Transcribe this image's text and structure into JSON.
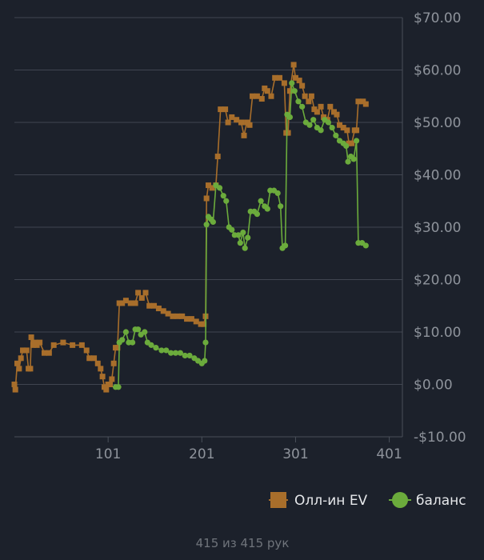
{
  "chart_data": {
    "type": "line",
    "title": "",
    "xlabel": "",
    "ylabel": "",
    "xlim": [
      1,
      415
    ],
    "ylim": [
      -10,
      70
    ],
    "x_ticks": [
      101,
      201,
      301,
      401
    ],
    "x_tick_labels": [
      "101",
      "201",
      "301",
      "401"
    ],
    "y_ticks": [
      -10,
      0,
      10,
      20,
      30,
      40,
      50,
      60,
      70
    ],
    "y_tick_labels": [
      "-$10.00",
      "$0.00",
      "$10.00",
      "$20.00",
      "$30.00",
      "$40.00",
      "$50.00",
      "$60.00",
      "$70.00"
    ],
    "grid": true,
    "legend_position": "bottom-right",
    "series": [
      {
        "name": "Олл-ин EV",
        "color": "#a86e2b",
        "marker": "square",
        "points": [
          [
            1,
            0
          ],
          [
            2,
            -1
          ],
          [
            4,
            4
          ],
          [
            6,
            3
          ],
          [
            8,
            5
          ],
          [
            10,
            6.5
          ],
          [
            14,
            6.5
          ],
          [
            16,
            3
          ],
          [
            18,
            3
          ],
          [
            19,
            9
          ],
          [
            21,
            7.5
          ],
          [
            23,
            8
          ],
          [
            25,
            7.5
          ],
          [
            28,
            8
          ],
          [
            33,
            6
          ],
          [
            38,
            6
          ],
          [
            43,
            7.5
          ],
          [
            53,
            8
          ],
          [
            63,
            7.5
          ],
          [
            73,
            7.5
          ],
          [
            78,
            6.5
          ],
          [
            81,
            5
          ],
          [
            86,
            5
          ],
          [
            90,
            4
          ],
          [
            93,
            3
          ],
          [
            95,
            1.5
          ],
          [
            97,
            -0.5
          ],
          [
            99,
            -1
          ],
          [
            101,
            0
          ],
          [
            103,
            0
          ],
          [
            105,
            1
          ],
          [
            107,
            4
          ],
          [
            109,
            7
          ],
          [
            111,
            7
          ],
          [
            113,
            15.5
          ],
          [
            116,
            15.5
          ],
          [
            120,
            16
          ],
          [
            125,
            15.5
          ],
          [
            130,
            15.5
          ],
          [
            133,
            17.5
          ],
          [
            137,
            16.5
          ],
          [
            141,
            17.5
          ],
          [
            145,
            15
          ],
          [
            150,
            15
          ],
          [
            155,
            14.5
          ],
          [
            160,
            14
          ],
          [
            165,
            13.5
          ],
          [
            170,
            13
          ],
          [
            175,
            13
          ],
          [
            180,
            13
          ],
          [
            185,
            12.5
          ],
          [
            190,
            12.5
          ],
          [
            195,
            12
          ],
          [
            200,
            11.5
          ],
          [
            203,
            11.5
          ],
          [
            205,
            13
          ],
          [
            206,
            35.5
          ],
          [
            208,
            38
          ],
          [
            212,
            37.5
          ],
          [
            216,
            38
          ],
          [
            218,
            43.5
          ],
          [
            221,
            52.5
          ],
          [
            226,
            52.5
          ],
          [
            229,
            50
          ],
          [
            233,
            51
          ],
          [
            238,
            50.5
          ],
          [
            243,
            50
          ],
          [
            246,
            47.5
          ],
          [
            249,
            50
          ],
          [
            252,
            49.5
          ],
          [
            255,
            55
          ],
          [
            260,
            55
          ],
          [
            265,
            54.5
          ],
          [
            268,
            56.5
          ],
          [
            271,
            56
          ],
          [
            275,
            55
          ],
          [
            279,
            58.5
          ],
          [
            284,
            58.5
          ],
          [
            289,
            57.5
          ],
          [
            291,
            48
          ],
          [
            293,
            48
          ],
          [
            295,
            56
          ],
          [
            299,
            61
          ],
          [
            301,
            58.5
          ],
          [
            305,
            58
          ],
          [
            308,
            57
          ],
          [
            311,
            55
          ],
          [
            315,
            54
          ],
          [
            318,
            55
          ],
          [
            321,
            52.5
          ],
          [
            324,
            52
          ],
          [
            328,
            53
          ],
          [
            331,
            51
          ],
          [
            335,
            50.5
          ],
          [
            338,
            53
          ],
          [
            342,
            52
          ],
          [
            345,
            51.5
          ],
          [
            348,
            49.5
          ],
          [
            352,
            49
          ],
          [
            356,
            48.5
          ],
          [
            358,
            46
          ],
          [
            361,
            46
          ],
          [
            364,
            48.5
          ],
          [
            366,
            48.5
          ],
          [
            368,
            54
          ],
          [
            373,
            54
          ],
          [
            376,
            53.5
          ]
        ]
      },
      {
        "name": "баланс",
        "color": "#6bab3c",
        "marker": "circle",
        "points": [
          [
            109,
            -0.5
          ],
          [
            112,
            -0.5
          ],
          [
            113,
            8
          ],
          [
            116,
            8.5
          ],
          [
            120,
            10
          ],
          [
            123,
            8
          ],
          [
            127,
            8
          ],
          [
            130,
            10.5
          ],
          [
            133,
            10.5
          ],
          [
            136,
            9.5
          ],
          [
            140,
            10
          ],
          [
            143,
            8
          ],
          [
            147,
            7.5
          ],
          [
            152,
            7
          ],
          [
            158,
            6.5
          ],
          [
            163,
            6.5
          ],
          [
            168,
            6
          ],
          [
            173,
            6
          ],
          [
            178,
            6
          ],
          [
            183,
            5.5
          ],
          [
            188,
            5.5
          ],
          [
            193,
            5
          ],
          [
            197,
            4.5
          ],
          [
            201,
            4
          ],
          [
            204,
            4.5
          ],
          [
            205,
            8
          ],
          [
            206,
            30.5
          ],
          [
            208,
            32
          ],
          [
            211,
            31.5
          ],
          [
            213,
            31
          ],
          [
            216,
            38
          ],
          [
            220,
            37.5
          ],
          [
            224,
            36
          ],
          [
            227,
            35
          ],
          [
            230,
            30
          ],
          [
            233,
            29.5
          ],
          [
            236,
            28.5
          ],
          [
            240,
            28.5
          ],
          [
            242,
            27
          ],
          [
            245,
            29
          ],
          [
            247,
            26
          ],
          [
            250,
            28
          ],
          [
            253,
            33
          ],
          [
            257,
            33
          ],
          [
            260,
            32.5
          ],
          [
            264,
            35
          ],
          [
            268,
            34
          ],
          [
            271,
            33.5
          ],
          [
            274,
            37
          ],
          [
            278,
            37
          ],
          [
            282,
            36.5
          ],
          [
            285,
            34
          ],
          [
            287,
            26
          ],
          [
            290,
            26.5
          ],
          [
            292,
            51.5
          ],
          [
            295,
            51
          ],
          [
            297,
            57.5
          ],
          [
            300,
            56
          ],
          [
            304,
            54
          ],
          [
            308,
            53
          ],
          [
            312,
            50
          ],
          [
            316,
            49.5
          ],
          [
            320,
            50.5
          ],
          [
            324,
            49
          ],
          [
            328,
            48.5
          ],
          [
            332,
            50.5
          ],
          [
            336,
            50
          ],
          [
            340,
            49
          ],
          [
            344,
            47.5
          ],
          [
            348,
            46.5
          ],
          [
            352,
            46
          ],
          [
            355,
            45.5
          ],
          [
            357,
            42.5
          ],
          [
            360,
            43.5
          ],
          [
            363,
            43
          ],
          [
            366,
            46.5
          ],
          [
            368,
            27
          ],
          [
            372,
            27
          ],
          [
            376,
            26.5
          ]
        ]
      }
    ],
    "footer_text": "415 из 415 рук"
  }
}
